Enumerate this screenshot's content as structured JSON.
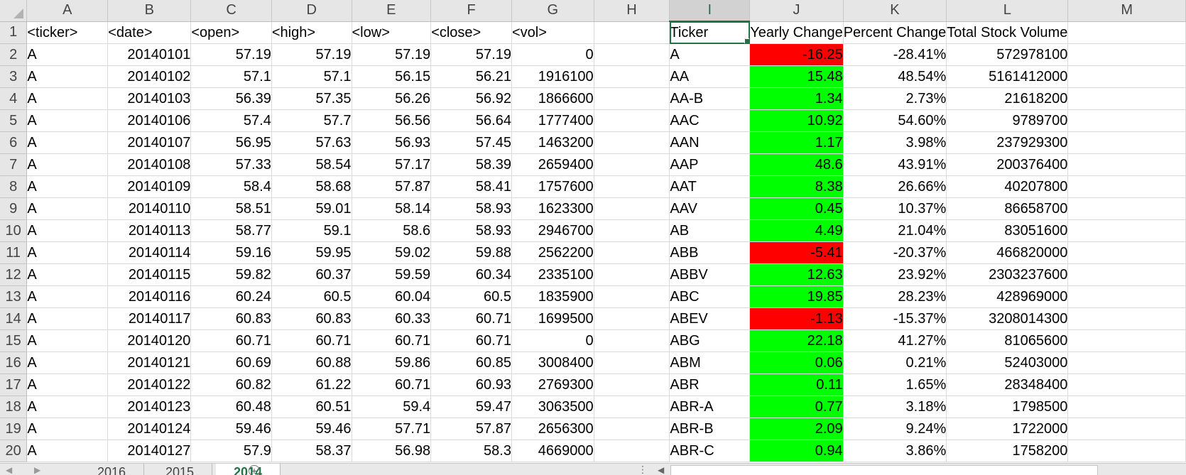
{
  "columns": [
    "A",
    "B",
    "C",
    "D",
    "E",
    "F",
    "G",
    "H",
    "I",
    "J",
    "K",
    "L",
    "M"
  ],
  "selected_column": "I",
  "rows": [
    {
      "n": "1",
      "c": [
        "<ticker>",
        "<date>",
        "<open>",
        "<high>",
        "<low>",
        "<close>",
        "<vol>",
        "",
        "Ticker",
        "Yearly Change",
        "Percent Change",
        "Total Stock Volume",
        ""
      ]
    },
    {
      "n": "2",
      "c": [
        "A",
        "20140101",
        "57.19",
        "57.19",
        "57.19",
        "57.19",
        "0",
        "",
        "A",
        "-16.25",
        "-28.41%",
        "572978100",
        ""
      ]
    },
    {
      "n": "3",
      "c": [
        "A",
        "20140102",
        "57.1",
        "57.1",
        "56.15",
        "56.21",
        "1916100",
        "",
        "AA",
        "15.48",
        "48.54%",
        "5161412000",
        ""
      ]
    },
    {
      "n": "4",
      "c": [
        "A",
        "20140103",
        "56.39",
        "57.35",
        "56.26",
        "56.92",
        "1866600",
        "",
        "AA-B",
        "1.34",
        "2.73%",
        "21618200",
        ""
      ]
    },
    {
      "n": "5",
      "c": [
        "A",
        "20140106",
        "57.4",
        "57.7",
        "56.56",
        "56.64",
        "1777400",
        "",
        "AAC",
        "10.92",
        "54.60%",
        "9789700",
        ""
      ]
    },
    {
      "n": "6",
      "c": [
        "A",
        "20140107",
        "56.95",
        "57.63",
        "56.93",
        "57.45",
        "1463200",
        "",
        "AAN",
        "1.17",
        "3.98%",
        "237929300",
        ""
      ]
    },
    {
      "n": "7",
      "c": [
        "A",
        "20140108",
        "57.33",
        "58.54",
        "57.17",
        "58.39",
        "2659400",
        "",
        "AAP",
        "48.6",
        "43.91%",
        "200376400",
        ""
      ]
    },
    {
      "n": "8",
      "c": [
        "A",
        "20140109",
        "58.4",
        "58.68",
        "57.87",
        "58.41",
        "1757600",
        "",
        "AAT",
        "8.38",
        "26.66%",
        "40207800",
        ""
      ]
    },
    {
      "n": "9",
      "c": [
        "A",
        "20140110",
        "58.51",
        "59.01",
        "58.14",
        "58.93",
        "1623300",
        "",
        "AAV",
        "0.45",
        "10.37%",
        "86658700",
        ""
      ]
    },
    {
      "n": "10",
      "c": [
        "A",
        "20140113",
        "58.77",
        "59.1",
        "58.6",
        "58.93",
        "2946700",
        "",
        "AB",
        "4.49",
        "21.04%",
        "83051600",
        ""
      ]
    },
    {
      "n": "11",
      "c": [
        "A",
        "20140114",
        "59.16",
        "59.95",
        "59.02",
        "59.88",
        "2562200",
        "",
        "ABB",
        "-5.41",
        "-20.37%",
        "466820000",
        ""
      ]
    },
    {
      "n": "12",
      "c": [
        "A",
        "20140115",
        "59.82",
        "60.37",
        "59.59",
        "60.34",
        "2335100",
        "",
        "ABBV",
        "12.63",
        "23.92%",
        "2303237600",
        ""
      ]
    },
    {
      "n": "13",
      "c": [
        "A",
        "20140116",
        "60.24",
        "60.5",
        "60.04",
        "60.5",
        "1835900",
        "",
        "ABC",
        "19.85",
        "28.23%",
        "428969000",
        ""
      ]
    },
    {
      "n": "14",
      "c": [
        "A",
        "20140117",
        "60.83",
        "60.83",
        "60.33",
        "60.71",
        "1699500",
        "",
        "ABEV",
        "-1.13",
        "-15.37%",
        "3208014300",
        ""
      ]
    },
    {
      "n": "15",
      "c": [
        "A",
        "20140120",
        "60.71",
        "60.71",
        "60.71",
        "60.71",
        "0",
        "",
        "ABG",
        "22.18",
        "41.27%",
        "81065600",
        ""
      ]
    },
    {
      "n": "16",
      "c": [
        "A",
        "20140121",
        "60.69",
        "60.88",
        "59.86",
        "60.85",
        "3008400",
        "",
        "ABM",
        "0.06",
        "0.21%",
        "52403000",
        ""
      ]
    },
    {
      "n": "17",
      "c": [
        "A",
        "20140122",
        "60.82",
        "61.22",
        "60.71",
        "60.93",
        "2769300",
        "",
        "ABR",
        "0.11",
        "1.65%",
        "28348400",
        ""
      ]
    },
    {
      "n": "18",
      "c": [
        "A",
        "20140123",
        "60.48",
        "60.51",
        "59.4",
        "59.47",
        "3063500",
        "",
        "ABR-A",
        "0.77",
        "3.18%",
        "1798500",
        ""
      ]
    },
    {
      "n": "19",
      "c": [
        "A",
        "20140124",
        "59.46",
        "59.46",
        "57.71",
        "57.87",
        "2656300",
        "",
        "ABR-B",
        "2.09",
        "9.24%",
        "1722000",
        ""
      ]
    },
    {
      "n": "20",
      "c": [
        "A",
        "20140127",
        "57.9",
        "58.37",
        "56.98",
        "58.3",
        "4669000",
        "",
        "ABR-C",
        "0.94",
        "3.86%",
        "1758200",
        ""
      ]
    }
  ],
  "colors": {
    "positive": "#00ff00",
    "negative": "#ff0000",
    "accent": "#217346"
  },
  "sheet_tabs": [
    {
      "label": "2016",
      "active": false
    },
    {
      "label": "2015",
      "active": false
    },
    {
      "label": "2014",
      "active": true
    }
  ],
  "icons": {
    "prev_sheet": "prev-sheet-icon",
    "next_sheet": "next-sheet-icon",
    "add_sheet": "add-sheet-icon"
  }
}
